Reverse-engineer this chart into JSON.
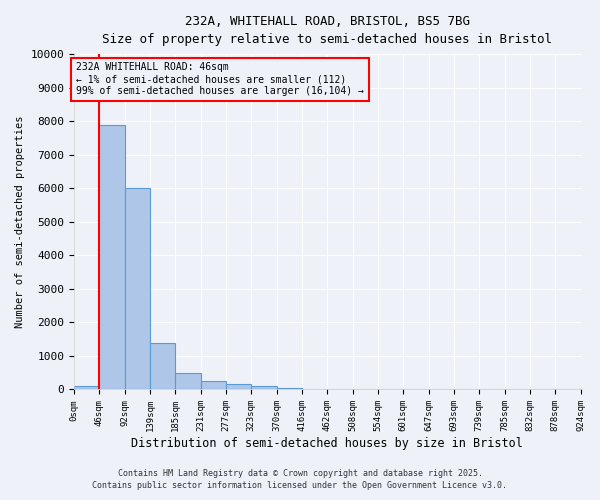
{
  "title_line1": "232A, WHITEHALL ROAD, BRISTOL, BS5 7BG",
  "title_line2": "Size of property relative to semi-detached houses in Bristol",
  "xlabel": "Distribution of semi-detached houses by size in Bristol",
  "ylabel": "Number of semi-detached properties",
  "bin_labels": [
    "0sqm",
    "46sqm",
    "92sqm",
    "139sqm",
    "185sqm",
    "231sqm",
    "277sqm",
    "323sqm",
    "370sqm",
    "416sqm",
    "462sqm",
    "508sqm",
    "554sqm",
    "601sqm",
    "647sqm",
    "693sqm",
    "739sqm",
    "785sqm",
    "832sqm",
    "878sqm",
    "924sqm"
  ],
  "bar_heights": [
    112,
    7900,
    6000,
    1400,
    500,
    250,
    150,
    100,
    30,
    0,
    0,
    0,
    0,
    0,
    0,
    0,
    0,
    0,
    0,
    0
  ],
  "bar_color": "#aec6e8",
  "bar_edge_color": "#5b9bd5",
  "highlight_color": "#ff0000",
  "annotation_text": "232A WHITEHALL ROAD: 46sqm\n← 1% of semi-detached houses are smaller (112)\n99% of semi-detached houses are larger (16,104) →",
  "annotation_box_color": "#ff0000",
  "ylim": [
    0,
    10000
  ],
  "yticks": [
    0,
    1000,
    2000,
    3000,
    4000,
    5000,
    6000,
    7000,
    8000,
    9000,
    10000
  ],
  "background_color": "#eef2f8",
  "grid_color": "#ffffff",
  "footer_line1": "Contains HM Land Registry data © Crown copyright and database right 2025.",
  "footer_line2": "Contains public sector information licensed under the Open Government Licence v3.0."
}
